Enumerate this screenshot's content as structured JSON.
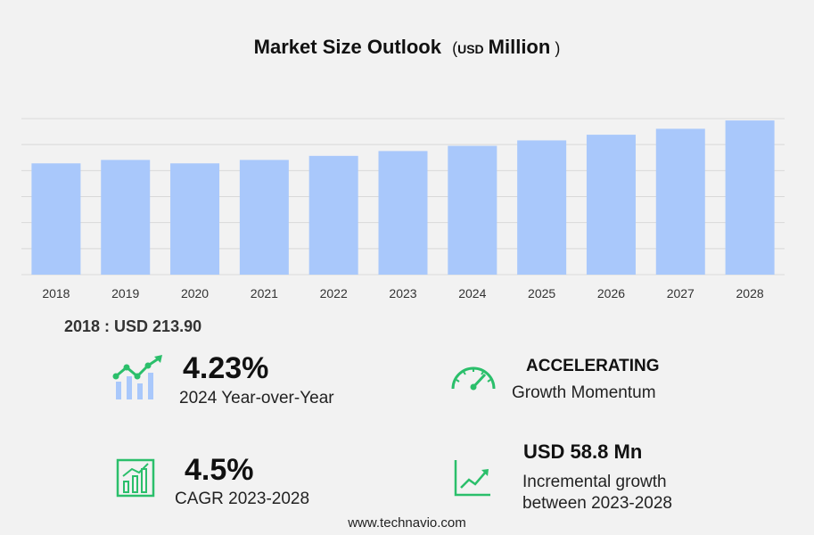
{
  "title": {
    "main": "Market Size Outlook",
    "paren_open": "(",
    "unit_small": "USD",
    "unit_big": "Million",
    "paren_close": ")"
  },
  "chart_data": {
    "type": "bar",
    "categories": [
      "2018",
      "2019",
      "2020",
      "2021",
      "2022",
      "2023",
      "2024",
      "2025",
      "2026",
      "2027",
      "2028"
    ],
    "values": [
      213.9,
      220.5,
      213.9,
      220.5,
      228.3,
      237.6,
      247.6,
      258.1,
      269.0,
      280.4,
      296.4
    ],
    "ylim": [
      0,
      300
    ],
    "grid": true,
    "bar_color": "#a9c8fb",
    "grid_color": "#d9d9d9"
  },
  "base_value": "2018 : USD  213.90",
  "stats": {
    "yoy": {
      "value": "4.23%",
      "label": "2024 Year-over-Year"
    },
    "momentum": {
      "value": "ACCELERATING",
      "label": "Growth Momentum"
    },
    "cagr": {
      "value": "4.5%",
      "label": "CAGR 2023-2028"
    },
    "incremental": {
      "value": "USD 58.8 Mn",
      "label1": "Incremental growth",
      "label2": "between 2023-2028"
    }
  },
  "icons": {
    "yoy": "growth-chart-icon",
    "momentum": "speedometer-icon",
    "cagr": "bar-chart-icon",
    "incremental": "line-chart-icon",
    "accent": "#2bbf6b"
  },
  "footer": "www.technavio.com"
}
